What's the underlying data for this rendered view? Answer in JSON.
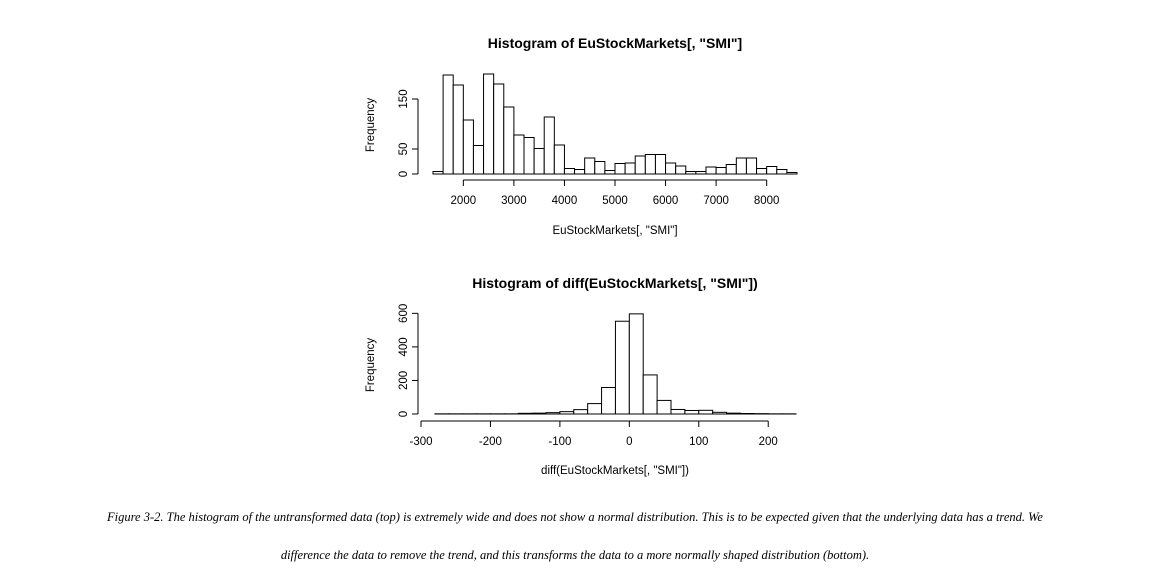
{
  "chart_data": [
    {
      "type": "bar",
      "subtype": "histogram",
      "title": "Histogram of EuStockMarkets[, \"SMI\"]",
      "xlabel": "EuStockMarkets[, \"SMI\"]",
      "ylabel": "Frequency",
      "bin_width": 200,
      "bin_edges": [
        1400,
        1600,
        1800,
        2000,
        2200,
        2400,
        2600,
        2800,
        3000,
        3200,
        3400,
        3600,
        3800,
        4000,
        4200,
        4400,
        4600,
        4800,
        5000,
        5200,
        5400,
        5600,
        5800,
        6000,
        6200,
        6400,
        6600,
        6800,
        7000,
        7200,
        7400,
        7600,
        7800,
        8000,
        8200,
        8400,
        8600
      ],
      "values": [
        5,
        198,
        178,
        108,
        57,
        200,
        180,
        134,
        78,
        73,
        51,
        114,
        58,
        11,
        9,
        32,
        25,
        7,
        21,
        22,
        36,
        39,
        39,
        22,
        16,
        5,
        5,
        14,
        13,
        19,
        32,
        32,
        11,
        15,
        9,
        3
      ],
      "xlim": [
        1400,
        8600
      ],
      "ylim": [
        0,
        200
      ],
      "xticks": [
        2000,
        3000,
        4000,
        5000,
        6000,
        7000,
        8000
      ],
      "yticks": [
        0,
        50,
        150
      ],
      "grid": false,
      "legend": "none"
    },
    {
      "type": "bar",
      "subtype": "histogram",
      "title": "Histogram of diff(EuStockMarkets[, \"SMI\"])",
      "xlabel": "diff(EuStockMarkets[, \"SMI\"])",
      "ylabel": "Frequency",
      "bin_width": 20,
      "bin_edges": [
        -280,
        -260,
        -240,
        -220,
        -200,
        -180,
        -160,
        -140,
        -120,
        -100,
        -80,
        -60,
        -40,
        -20,
        0,
        20,
        40,
        60,
        80,
        100,
        120,
        140,
        160,
        180,
        200,
        220,
        240
      ],
      "values": [
        1,
        1,
        1,
        1,
        1,
        1,
        4,
        5,
        8,
        14,
        26,
        62,
        158,
        553,
        597,
        233,
        81,
        27,
        21,
        22,
        10,
        5,
        3,
        2,
        1,
        1
      ],
      "xlim": [
        -300,
        240
      ],
      "ylim": [
        0,
        620
      ],
      "xticks": [
        -300,
        -200,
        -100,
        0,
        100,
        200
      ],
      "yticks": [
        0,
        200,
        400,
        600
      ],
      "grid": false,
      "legend": "none"
    }
  ],
  "caption": {
    "line1": "Figure 3-2. The histogram of the untransformed data (top) is extremely wide and does not show a normal distribution. This is to be expected given that the underlying data has a trend. We",
    "line2": "difference the data to remove the trend, and this transforms the data to a more normally shaped distribution (bottom)."
  }
}
